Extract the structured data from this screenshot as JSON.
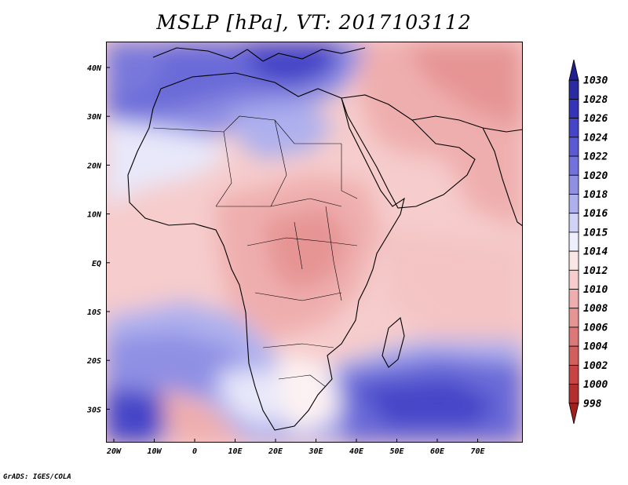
{
  "title": "MSLP [hPa], VT: 2017103112",
  "credit": "GrADS: IGES/COLA",
  "lat_labels": [
    "40N",
    "30N",
    "20N",
    "10N",
    "EQ",
    "10S",
    "20S",
    "30S"
  ],
  "lon_labels": [
    "20W",
    "10W",
    "0",
    "10E",
    "20E",
    "30E",
    "40E",
    "50E",
    "60E",
    "70E"
  ],
  "colorbar": {
    "levels": [
      "1030",
      "1028",
      "1026",
      "1024",
      "1022",
      "1020",
      "1018",
      "1016",
      "1015",
      "1014",
      "1012",
      "1010",
      "1008",
      "1006",
      "1004",
      "1002",
      "1000",
      "998"
    ],
    "colors": [
      "#1f1f8f",
      "#2a2aa3",
      "#3434b8",
      "#4545c8",
      "#5a5ad2",
      "#7272dc",
      "#8f8fe4",
      "#aeb0ee",
      "#d0d2f6",
      "#eeeefc",
      "#fbe6e6",
      "#f6cccc",
      "#efaeae",
      "#e69494",
      "#dd7878",
      "#d35e5e",
      "#c84444",
      "#b52e2e",
      "#a02020"
    ]
  },
  "field_colors": {
    "highest": "#3a3ab8",
    "very_high": "#5555cc",
    "high": "#7878dc",
    "mid_high": "#a8aaec",
    "near_neutral_high": "#dcdcf8",
    "neutral": "#fdf2f2",
    "low": "#f6cccc",
    "lower": "#efb0b0",
    "lowest": "#e69494"
  }
}
